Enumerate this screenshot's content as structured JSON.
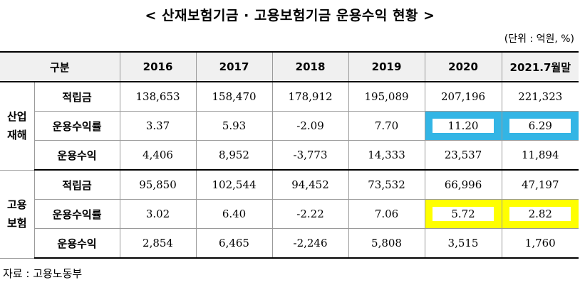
{
  "title": "< 산재보험기금 · 고용보험기금 운용수익 현황 >",
  "unit": "(단위 : 억원, %)",
  "header": {
    "category": "구분",
    "years": [
      "2016",
      "2017",
      "2018",
      "2019",
      "2020",
      "2021.7월말"
    ]
  },
  "groups": [
    {
      "name_line1": "산업",
      "name_line2": "재해",
      "rows": [
        {
          "label": "적립금",
          "values": [
            "138,653",
            "158,470",
            "178,912",
            "195,089",
            "207,196",
            "221,323"
          ]
        },
        {
          "label": "운용수익률",
          "values": [
            "3.37",
            "5.93",
            "-2.09",
            "7.70",
            "11.20",
            "6.29"
          ],
          "highlight": "#33b5e5"
        },
        {
          "label": "운용수익",
          "values": [
            "4,406",
            "8,952",
            "-3,773",
            "14,333",
            "23,537",
            "11,894"
          ]
        }
      ]
    },
    {
      "name_line1": "고용",
      "name_line2": "보험",
      "rows": [
        {
          "label": "적립금",
          "values": [
            "95,850",
            "102,544",
            "94,452",
            "73,532",
            "66,996",
            "47,197"
          ]
        },
        {
          "label": "운용수익률",
          "values": [
            "3.02",
            "6.40",
            "-2.22",
            "7.06",
            "5.72",
            "2.82"
          ],
          "highlight": "#ffff00"
        },
        {
          "label": "운용수익",
          "values": [
            "2,854",
            "6,465",
            "-2,246",
            "5,808",
            "3,515",
            "1,760"
          ]
        }
      ]
    }
  ],
  "source": "자료 : 고용노동부"
}
